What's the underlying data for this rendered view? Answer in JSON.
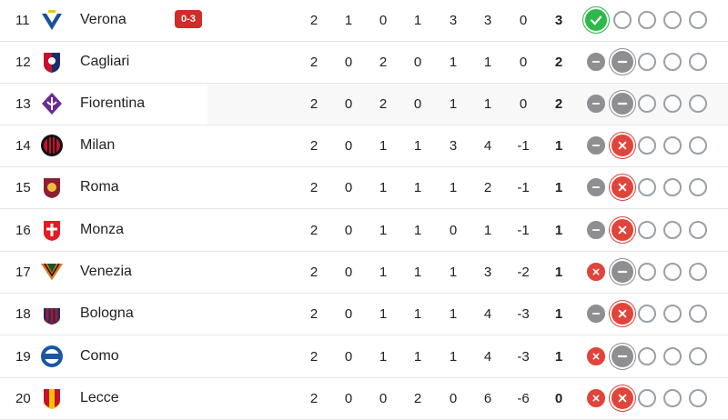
{
  "columns_order": [
    "played",
    "won",
    "drawn",
    "lost",
    "goals_for",
    "goals_against",
    "goal_diff",
    "points"
  ],
  "rows": [
    {
      "rank": "11",
      "team": "Verona",
      "crest_icon": "verona-crest-icon",
      "badge": "0-3",
      "stats": [
        "2",
        "1",
        "0",
        "1",
        "3",
        "3",
        "0",
        "3"
      ],
      "form": [
        "win",
        "empty",
        "empty",
        "empty",
        "empty"
      ],
      "current_index": 0
    },
    {
      "rank": "12",
      "team": "Cagliari",
      "crest_icon": "cagliari-crest-icon",
      "stats": [
        "2",
        "0",
        "2",
        "0",
        "1",
        "1",
        "0",
        "2"
      ],
      "form": [
        "draw",
        "draw",
        "empty",
        "empty",
        "empty"
      ],
      "current_index": 1
    },
    {
      "rank": "13",
      "team": "Fiorentina",
      "crest_icon": "fiorentina-crest-icon",
      "stats": [
        "2",
        "0",
        "2",
        "0",
        "1",
        "1",
        "0",
        "2"
      ],
      "form": [
        "draw",
        "draw",
        "empty",
        "empty",
        "empty"
      ],
      "current_index": 1
    },
    {
      "rank": "14",
      "team": "Milan",
      "crest_icon": "milan-crest-icon",
      "stats": [
        "2",
        "0",
        "1",
        "1",
        "3",
        "4",
        "-1",
        "1"
      ],
      "form": [
        "draw",
        "loss",
        "empty",
        "empty",
        "empty"
      ],
      "current_index": 1
    },
    {
      "rank": "15",
      "team": "Roma",
      "crest_icon": "roma-crest-icon",
      "stats": [
        "2",
        "0",
        "1",
        "1",
        "1",
        "2",
        "-1",
        "1"
      ],
      "form": [
        "draw",
        "loss",
        "empty",
        "empty",
        "empty"
      ],
      "current_index": 1
    },
    {
      "rank": "16",
      "team": "Monza",
      "crest_icon": "monza-crest-icon",
      "stats": [
        "2",
        "0",
        "1",
        "1",
        "0",
        "1",
        "-1",
        "1"
      ],
      "form": [
        "draw",
        "loss",
        "empty",
        "empty",
        "empty"
      ],
      "current_index": 1
    },
    {
      "rank": "17",
      "team": "Venezia",
      "crest_icon": "venezia-crest-icon",
      "stats": [
        "2",
        "0",
        "1",
        "1",
        "1",
        "3",
        "-2",
        "1"
      ],
      "form": [
        "loss",
        "draw",
        "empty",
        "empty",
        "empty"
      ],
      "current_index": 1
    },
    {
      "rank": "18",
      "team": "Bologna",
      "crest_icon": "bologna-crest-icon",
      "stats": [
        "2",
        "0",
        "1",
        "1",
        "1",
        "4",
        "-3",
        "1"
      ],
      "form": [
        "draw",
        "loss",
        "empty",
        "empty",
        "empty"
      ],
      "current_index": 1
    },
    {
      "rank": "19",
      "team": "Como",
      "crest_icon": "como-crest-icon",
      "stats": [
        "2",
        "0",
        "1",
        "1",
        "1",
        "4",
        "-3",
        "1"
      ],
      "form": [
        "loss",
        "draw",
        "empty",
        "empty",
        "empty"
      ],
      "current_index": 1
    },
    {
      "rank": "20",
      "team": "Lecce",
      "crest_icon": "lecce-crest-icon",
      "stats": [
        "2",
        "0",
        "0",
        "2",
        "0",
        "6",
        "-6",
        "0"
      ],
      "form": [
        "loss",
        "loss",
        "empty",
        "empty",
        "empty"
      ],
      "current_index": 1
    }
  ],
  "colors": {
    "win": "#2fb84a",
    "draw": "#8e8e93",
    "loss": "#e0443a",
    "badge": "#d32a2a"
  }
}
